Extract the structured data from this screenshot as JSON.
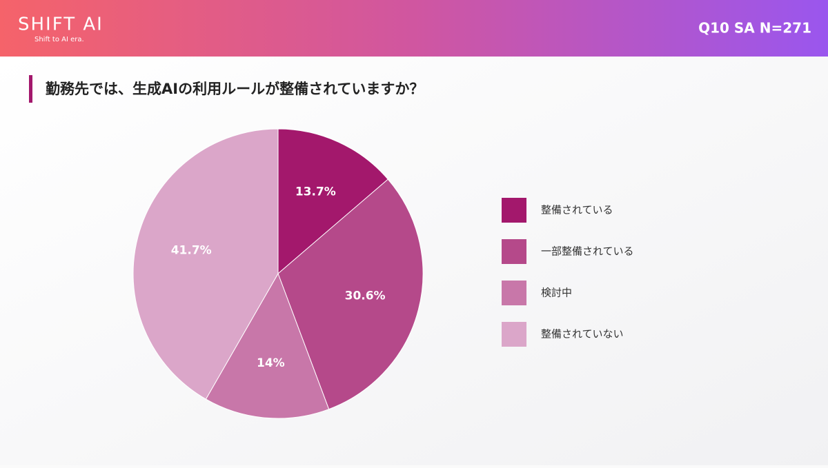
{
  "header": {
    "logo": "SHIFT AI",
    "tagline": "Shift to AI era.",
    "question": "Q10 SA N=271"
  },
  "chart_data": {
    "type": "pie",
    "title": "勤務先では、生成AIの利用ルールが整備されていますか？",
    "categories": [
      "整備されている",
      "一部整備されている",
      "検討中",
      "整備されていない"
    ],
    "values": [
      13.7,
      30.6,
      14,
      41.7
    ],
    "value_labels": [
      "13.7%",
      "30.6%",
      "14%",
      "41.7%"
    ],
    "colors": [
      "#a3186c",
      "#b5498a",
      "#c877a9",
      "#dba6c9"
    ],
    "legend": "right"
  }
}
